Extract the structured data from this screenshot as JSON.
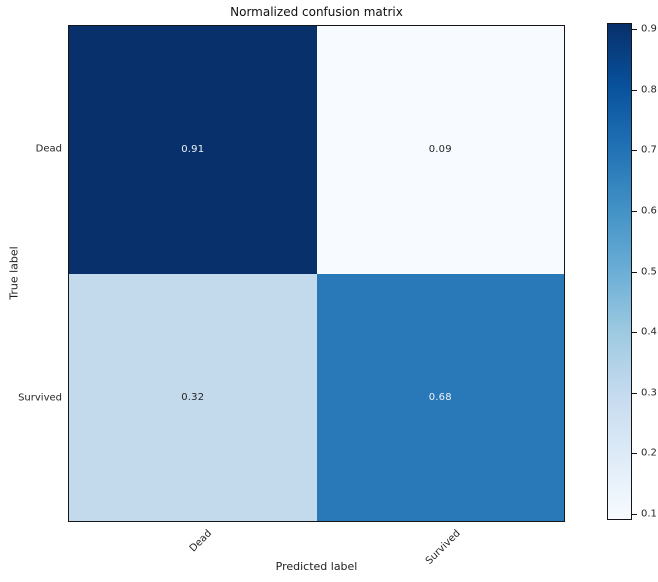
{
  "chart_data": {
    "type": "heatmap",
    "title": "Normalized confusion matrix",
    "xlabel": "Predicted label",
    "ylabel": "True label",
    "x_categories": [
      "Dead",
      "Survived"
    ],
    "y_categories": [
      "Dead",
      "Survived"
    ],
    "matrix": [
      [
        0.91,
        0.09
      ],
      [
        0.32,
        0.68
      ]
    ],
    "cell_labels": [
      [
        "0.91",
        "0.09"
      ],
      [
        "0.32",
        "0.68"
      ]
    ],
    "cell_colors": [
      [
        "#08306b",
        "#f7fbff"
      ],
      [
        "#c3d9ec",
        "#2979b9"
      ]
    ],
    "cell_text_colors": [
      [
        "#eef3fa",
        "#262626"
      ],
      [
        "#262626",
        "#eef3fa"
      ]
    ],
    "colormap": "Blues",
    "vmin": 0.09,
    "vmax": 0.91,
    "x_tick_rotation_deg": -45,
    "grid": false,
    "colorbar": {
      "position": "right",
      "tick_labels": [
        "0.9",
        "0.8",
        "0.7",
        "0.6",
        "0.5",
        "0.4",
        "0.3",
        "0.2",
        "0.1"
      ],
      "tick_values": [
        0.9,
        0.8,
        0.7,
        0.6,
        0.5,
        0.4,
        0.3,
        0.2,
        0.1
      ],
      "gradient_stops_top_to_bottom": [
        "#08306b",
        "#08519c",
        "#2171b5",
        "#4292c6",
        "#6baed6",
        "#9ecae1",
        "#c6dbef",
        "#deebf7",
        "#f7fbff"
      ]
    }
  }
}
